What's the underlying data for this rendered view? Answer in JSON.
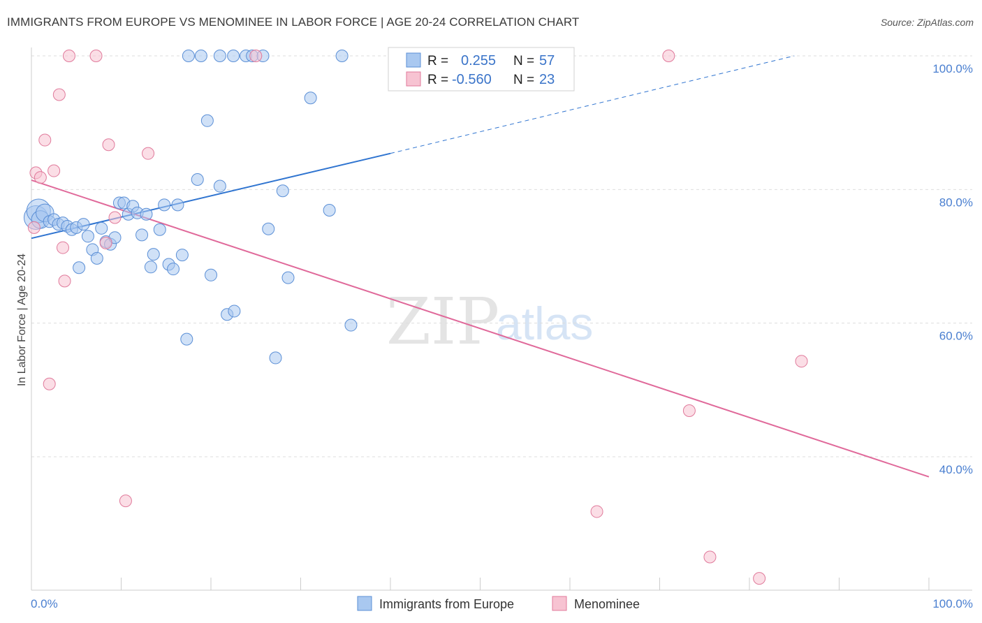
{
  "title": "IMMIGRANTS FROM EUROPE VS MENOMINEE IN LABOR FORCE | AGE 20-24 CORRELATION CHART",
  "source": "Source: ZipAtlas.com",
  "watermark": {
    "zip": "ZIP",
    "atlas": "atlas"
  },
  "colors": {
    "blue_fill": "#a9c8f0",
    "blue_stroke": "#5b8fd6",
    "blue_line": "#2f74d0",
    "pink_fill": "#f7c3d2",
    "pink_stroke": "#e07a9b",
    "pink_line": "#e0699a",
    "axis_text": "#4a7fd0",
    "grid": "#dddddd"
  },
  "legend": {
    "r_label": "R =",
    "n_label": "N =",
    "rows": [
      {
        "r": "0.255",
        "n": "57",
        "color": "blue"
      },
      {
        "r": "-0.560",
        "n": "23",
        "color": "pink"
      }
    ]
  },
  "bottom_legend": [
    {
      "label": "Immigrants from Europe",
      "color": "blue"
    },
    {
      "label": "Menominee",
      "color": "pink"
    }
  ],
  "chart_data": {
    "type": "scatter",
    "xlabel": "",
    "ylabel": "In Labor Force | Age 20-24",
    "xlim": [
      0,
      100
    ],
    "ylim": [
      20,
      104
    ],
    "x_tick_labels": [
      "0.0%",
      "100.0%"
    ],
    "y_ticks": [
      40,
      60,
      80,
      100
    ],
    "y_tick_labels": [
      "40.0%",
      "60.0%",
      "80.0%",
      "100.0%"
    ],
    "grid": true,
    "legend_position": "top-center",
    "series": [
      {
        "name": "Immigrants from Europe",
        "color": "blue",
        "points": [
          [
            0.5,
            75.8,
            2
          ],
          [
            0.8,
            76.8,
            2
          ],
          [
            1.0,
            75.5,
            1.5
          ],
          [
            1.5,
            76.5,
            1.5
          ],
          [
            2.0,
            75.2,
            1
          ],
          [
            2.5,
            75.5,
            1
          ],
          [
            3.0,
            74.8,
            1
          ],
          [
            3.5,
            75.0,
            1
          ],
          [
            4.0,
            74.5,
            1
          ],
          [
            4.5,
            74.0,
            1
          ],
          [
            5.0,
            74.3,
            1
          ],
          [
            5.8,
            74.8,
            1
          ],
          [
            6.3,
            73.0,
            1
          ],
          [
            6.8,
            71.0,
            1
          ],
          [
            7.3,
            69.7,
            1
          ],
          [
            5.3,
            68.3,
            1
          ],
          [
            7.8,
            74.2,
            1
          ],
          [
            8.3,
            72.2,
            1
          ],
          [
            8.8,
            71.8,
            1
          ],
          [
            9.3,
            72.8,
            1
          ],
          [
            9.8,
            78.0,
            1
          ],
          [
            10.3,
            78.0,
            1
          ],
          [
            10.8,
            76.3,
            1
          ],
          [
            11.3,
            77.5,
            1
          ],
          [
            11.8,
            76.5,
            1
          ],
          [
            12.3,
            73.2,
            1
          ],
          [
            12.8,
            76.3,
            1
          ],
          [
            13.3,
            68.4,
            1
          ],
          [
            13.6,
            70.3,
            1
          ],
          [
            14.3,
            74.0,
            1
          ],
          [
            14.8,
            77.7,
            1
          ],
          [
            15.3,
            68.8,
            1
          ],
          [
            15.8,
            68.1,
            1
          ],
          [
            16.3,
            77.7,
            1
          ],
          [
            16.8,
            70.2,
            1
          ],
          [
            17.3,
            57.6,
            1
          ],
          [
            18.5,
            81.5,
            1
          ],
          [
            19.6,
            90.3,
            1
          ],
          [
            20.0,
            67.2,
            1
          ],
          [
            21.0,
            80.5,
            1
          ],
          [
            21.8,
            61.3,
            1
          ],
          [
            22.6,
            61.8,
            1
          ],
          [
            26.4,
            74.1,
            1
          ],
          [
            27.2,
            54.8,
            1
          ],
          [
            28.0,
            79.8,
            1
          ],
          [
            28.6,
            66.8,
            1
          ],
          [
            31.1,
            93.7,
            1
          ],
          [
            33.2,
            76.9,
            1
          ],
          [
            35.6,
            59.7,
            1
          ],
          [
            17.5,
            100,
            1
          ],
          [
            18.9,
            100,
            1
          ],
          [
            21.0,
            100,
            1
          ],
          [
            22.5,
            100,
            1
          ],
          [
            23.9,
            100,
            1
          ],
          [
            24.6,
            100,
            1
          ],
          [
            25.8,
            100,
            1
          ],
          [
            34.6,
            100,
            1
          ]
        ]
      },
      {
        "name": "Menominee",
        "color": "pink",
        "points": [
          [
            0.3,
            74.3,
            1
          ],
          [
            0.5,
            82.5,
            1
          ],
          [
            1.0,
            81.8,
            1
          ],
          [
            1.5,
            87.4,
            1
          ],
          [
            2.0,
            50.9,
            1
          ],
          [
            2.5,
            82.8,
            1
          ],
          [
            3.1,
            94.2,
            1
          ],
          [
            3.5,
            71.3,
            1
          ],
          [
            3.7,
            66.3,
            1
          ],
          [
            4.2,
            100,
            1
          ],
          [
            7.2,
            100,
            1
          ],
          [
            8.3,
            72.0,
            1
          ],
          [
            8.6,
            86.7,
            1
          ],
          [
            9.3,
            75.8,
            1
          ],
          [
            10.5,
            33.4,
            1
          ],
          [
            13.0,
            85.4,
            1
          ],
          [
            25.0,
            100,
            1
          ],
          [
            63.0,
            31.8,
            1
          ],
          [
            71.0,
            100,
            1
          ],
          [
            73.3,
            46.9,
            1
          ],
          [
            75.6,
            25.0,
            1
          ],
          [
            81.1,
            21.8,
            1
          ],
          [
            85.8,
            54.3,
            1
          ]
        ]
      }
    ],
    "trend_lines": [
      {
        "series": "Immigrants from Europe",
        "color": "blue",
        "x1": 0,
        "y1": 72.7,
        "x2": 40,
        "y2": 85.4,
        "dashed_to_x": 85,
        "dashed_to_y": 100
      },
      {
        "series": "Menominee",
        "color": "pink",
        "x1": 0,
        "y1": 81.4,
        "x2": 100,
        "y2": 37.0
      }
    ]
  }
}
